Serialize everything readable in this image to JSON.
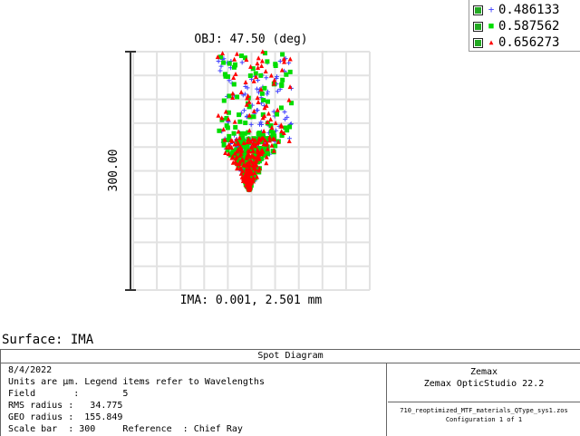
{
  "legend": [
    {
      "label": "0.486133",
      "color": "#4040ff",
      "marker": "+"
    },
    {
      "label": "0.587562",
      "color": "#00dd00",
      "marker": "■"
    },
    {
      "label": "0.656273",
      "color": "#ff0000",
      "marker": "▲"
    }
  ],
  "plot": {
    "title": "OBJ: 47.50 (deg)",
    "scale_label": "300.00",
    "image_label": "IMA: 0.001, 2.501 mm"
  },
  "surface": "Surface: IMA",
  "table": {
    "header": "Spot Diagram",
    "date": "8/4/2022",
    "units": "Units are µm. Legend items refer to Wavelengths",
    "field": "Field       :        5",
    "rms": "RMS radius :   34.775",
    "geo": "GEO radius :  155.849",
    "scale": "Scale bar  : 300     Reference  : Chief Ray",
    "brand": "Zemax",
    "product": "Zemax OpticStudio 22.2",
    "file": "710_reoptimized_MTF_materials_QType_sys1.zos",
    "config": "Configuration 1 of 1"
  }
}
